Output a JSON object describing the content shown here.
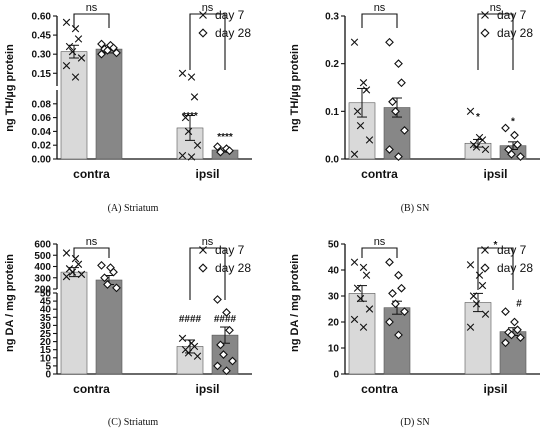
{
  "legend": {
    "day7": "day 7",
    "day28": "day 28"
  },
  "chart_data": [
    {
      "id": "A",
      "type": "bar",
      "caption": "(A) Striatum",
      "ylabel": "ng TH/µg protein",
      "categories": [
        "contra",
        "ipsil"
      ],
      "axis_break": {
        "lower": [
          0,
          0.1
        ],
        "upper": [
          0.05,
          0.6
        ]
      },
      "yticks_lower": [
        "0.00",
        "0.02",
        "0.04",
        "0.06",
        "0.08"
      ],
      "yticks_upper": [
        "0.15",
        "0.30",
        "0.45",
        "0.60"
      ],
      "yticks_lower_values": [
        0,
        0.02,
        0.04,
        0.06,
        0.08
      ],
      "yticks_upper_values": [
        0.15,
        0.3,
        0.45,
        0.6
      ],
      "series": [
        {
          "name": "day 7",
          "means": [
            0.32,
            0.045
          ],
          "errors": [
            0.05,
            0.018
          ],
          "points": [
            [
              0.55,
              0.5,
              0.42,
              0.36,
              0.32,
              0.27,
              0.21,
              0.12
            ],
            [
              0.15,
              0.12,
              0.09,
              0.06,
              0.04,
              0.02,
              0.005,
              0.003
            ]
          ]
        },
        {
          "name": "day 28",
          "means": [
            0.34,
            0.013
          ],
          "errors": [
            0.03,
            0.003
          ],
          "points": [
            [
              0.38,
              0.37,
              0.35,
              0.34,
              0.33,
              0.31,
              0.3
            ],
            [
              0.018,
              0.015,
              0.012,
              0.01
            ]
          ]
        }
      ],
      "significance": [
        {
          "category": 0,
          "text": "ns"
        },
        {
          "category": 1,
          "text": "ns"
        }
      ],
      "stars": [
        "****",
        "****"
      ]
    },
    {
      "id": "B",
      "type": "bar",
      "caption": "(B) SN",
      "ylabel": "ng TH/µg protein",
      "categories": [
        "contra",
        "ipsil"
      ],
      "ylim": [
        0,
        0.3
      ],
      "yticks": [
        "0.0",
        "0.1",
        "0.2",
        "0.3"
      ],
      "ytick_values": [
        0,
        0.1,
        0.2,
        0.3
      ],
      "series": [
        {
          "name": "day 7",
          "means": [
            0.118,
            0.033
          ],
          "errors": [
            0.03,
            0.008
          ],
          "points": [
            [
              0.245,
              0.16,
              0.145,
              0.1,
              0.07,
              0.04,
              0.01
            ],
            [
              0.1,
              0.045,
              0.04,
              0.03,
              0.025,
              0.02
            ]
          ]
        },
        {
          "name": "day 28",
          "means": [
            0.108,
            0.028
          ],
          "errors": [
            0.02,
            0.008
          ],
          "points": [
            [
              0.245,
              0.2,
              0.16,
              0.12,
              0.1,
              0.06,
              0.02,
              0.005
            ],
            [
              0.065,
              0.05,
              0.03,
              0.02,
              0.01,
              0.005
            ]
          ]
        }
      ],
      "significance": [
        {
          "category": 0,
          "text": "ns"
        },
        {
          "category": 1,
          "text": "ns"
        }
      ],
      "stars": [
        "*",
        "*"
      ]
    },
    {
      "id": "C",
      "type": "bar",
      "caption": "(C) Striatum",
      "ylabel": "ng DA / mg protein",
      "categories": [
        "contra",
        "ipsil"
      ],
      "axis_break": {
        "lower": [
          0,
          50
        ],
        "upper": [
          200,
          600
        ]
      },
      "yticks_lower": [
        "0",
        "5",
        "10",
        "15",
        "20",
        "25",
        "30",
        "35",
        "40",
        "45",
        "50"
      ],
      "yticks_upper": [
        "200",
        "300",
        "400",
        "500",
        "600"
      ],
      "yticks_lower_values": [
        0,
        5,
        10,
        15,
        20,
        25,
        30,
        35,
        40,
        45,
        50
      ],
      "yticks_upper_values": [
        200,
        300,
        400,
        500,
        600
      ],
      "series": [
        {
          "name": "day 7",
          "means": [
            350,
            17
          ],
          "errors": [
            40,
            4
          ],
          "points": [
            [
              520,
              470,
              420,
              380,
              350,
              330,
              310
            ],
            [
              22,
              19,
              17,
              15,
              13,
              11
            ]
          ]
        },
        {
          "name": "day 28",
          "means": [
            280,
            24
          ],
          "errors": [
            40,
            5
          ],
          "points": [
            [
              410,
              390,
              350,
              300,
              240,
              210
            ],
            [
              46,
              38,
              27,
              18,
              12,
              8,
              5,
              2
            ]
          ]
        }
      ],
      "significance": [
        {
          "category": 0,
          "text": "ns"
        },
        {
          "category": 1,
          "text": "ns"
        }
      ],
      "stars": [
        "####",
        "####"
      ]
    },
    {
      "id": "D",
      "type": "bar",
      "caption": "(D) SN",
      "ylabel": "ng DA / mg protein",
      "categories": [
        "contra",
        "ipsil"
      ],
      "ylim": [
        0,
        50
      ],
      "yticks": [
        "0",
        "10",
        "20",
        "30",
        "40",
        "50"
      ],
      "ytick_values": [
        0,
        10,
        20,
        30,
        40,
        50
      ],
      "series": [
        {
          "name": "day 7",
          "means": [
            31,
            27.5
          ],
          "errors": [
            3,
            3.5
          ],
          "points": [
            [
              43,
              41,
              38,
              33,
              29,
              25,
              21,
              18
            ],
            [
              42,
              38,
              34,
              30,
              27,
              23,
              18
            ]
          ]
        },
        {
          "name": "day 28",
          "means": [
            25.5,
            16.3
          ],
          "errors": [
            2.5,
            1.5
          ],
          "points": [
            [
              43,
              38,
              33,
              31,
              27,
              24,
              20,
              15
            ],
            [
              24,
              20,
              17,
              16,
              15,
              14,
              12
            ]
          ]
        }
      ],
      "significance": [
        {
          "category": 0,
          "text": "ns"
        },
        {
          "category": 1,
          "text": "*"
        }
      ],
      "stars": [
        "",
        "#"
      ]
    }
  ]
}
